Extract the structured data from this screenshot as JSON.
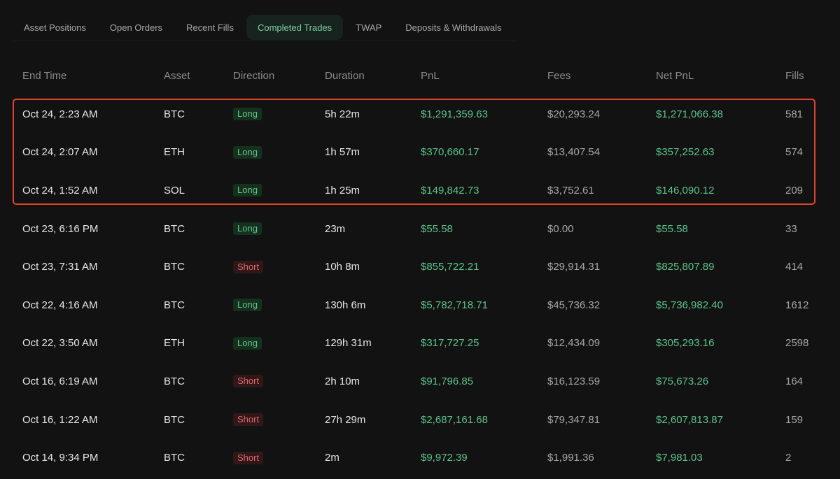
{
  "tabs": [
    {
      "label": "Asset Positions",
      "active": false
    },
    {
      "label": "Open Orders",
      "active": false
    },
    {
      "label": "Recent Fills",
      "active": false
    },
    {
      "label": "Completed Trades",
      "active": true
    },
    {
      "label": "TWAP",
      "active": false
    },
    {
      "label": "Deposits & Withdrawals",
      "active": false
    }
  ],
  "table": {
    "headers": {
      "end_time": "End Time",
      "asset": "Asset",
      "direction": "Direction",
      "duration": "Duration",
      "pnl": "PnL",
      "fees": "Fees",
      "net_pnl": "Net PnL",
      "fills": "Fills"
    },
    "rows": [
      {
        "end_time": "Oct 24, 2:23 AM",
        "asset": "BTC",
        "direction": "Long",
        "duration": "5h 22m",
        "pnl": "$1,291,359.63",
        "fees": "$20,293.24",
        "net_pnl": "$1,271,066.38",
        "fills": "581"
      },
      {
        "end_time": "Oct 24, 2:07 AM",
        "asset": "ETH",
        "direction": "Long",
        "duration": "1h 57m",
        "pnl": "$370,660.17",
        "fees": "$13,407.54",
        "net_pnl": "$357,252.63",
        "fills": "574"
      },
      {
        "end_time": "Oct 24, 1:52 AM",
        "asset": "SOL",
        "direction": "Long",
        "duration": "1h 25m",
        "pnl": "$149,842.73",
        "fees": "$3,752.61",
        "net_pnl": "$146,090.12",
        "fills": "209"
      },
      {
        "end_time": "Oct 23, 6:16 PM",
        "asset": "BTC",
        "direction": "Long",
        "duration": "23m",
        "pnl": "$55.58",
        "fees": "$0.00",
        "net_pnl": "$55.58",
        "fills": "33"
      },
      {
        "end_time": "Oct 23, 7:31 AM",
        "asset": "BTC",
        "direction": "Short",
        "duration": "10h 8m",
        "pnl": "$855,722.21",
        "fees": "$29,914.31",
        "net_pnl": "$825,807.89",
        "fills": "414"
      },
      {
        "end_time": "Oct 22, 4:16 AM",
        "asset": "BTC",
        "direction": "Long",
        "duration": "130h 6m",
        "pnl": "$5,782,718.71",
        "fees": "$45,736.32",
        "net_pnl": "$5,736,982.40",
        "fills": "1612"
      },
      {
        "end_time": "Oct 22, 3:50 AM",
        "asset": "ETH",
        "direction": "Long",
        "duration": "129h 31m",
        "pnl": "$317,727.25",
        "fees": "$12,434.09",
        "net_pnl": "$305,293.16",
        "fills": "2598"
      },
      {
        "end_time": "Oct 16, 6:19 AM",
        "asset": "BTC",
        "direction": "Short",
        "duration": "2h 10m",
        "pnl": "$91,796.85",
        "fees": "$16,123.59",
        "net_pnl": "$75,673.26",
        "fills": "164"
      },
      {
        "end_time": "Oct 16, 1:22 AM",
        "asset": "BTC",
        "direction": "Short",
        "duration": "27h 29m",
        "pnl": "$2,687,161.68",
        "fees": "$79,347.81",
        "net_pnl": "$2,607,813.87",
        "fills": "159"
      },
      {
        "end_time": "Oct 14, 9:34 PM",
        "asset": "BTC",
        "direction": "Short",
        "duration": "2m",
        "pnl": "$9,972.39",
        "fees": "$1,991.36",
        "net_pnl": "$7,981.03",
        "fills": "2"
      }
    ]
  },
  "colors": {
    "background": "#121212",
    "positive": "#5cc38b",
    "long_badge_bg": "#15301f",
    "short_badge_bg": "#311717",
    "short_text": "#d86b6b",
    "highlight_border": "#e0442e"
  }
}
